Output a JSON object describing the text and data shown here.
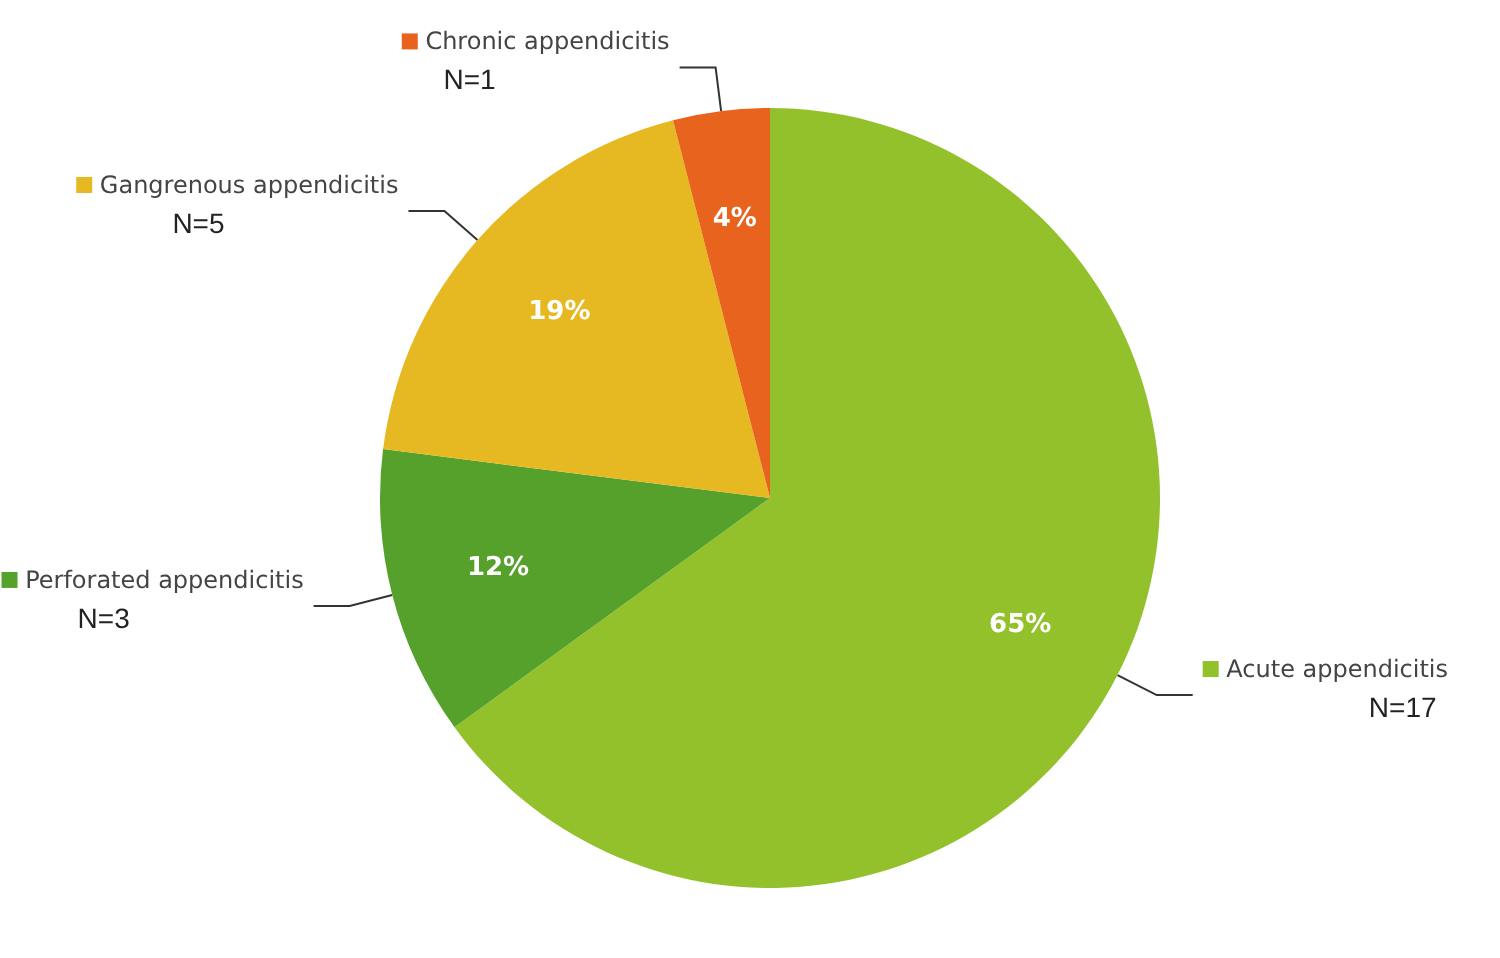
{
  "chart_data": {
    "type": "pie",
    "categories": [
      "Acute appendicitis",
      "Perforated appendicitis",
      "Gangrenous appendicitis",
      "Chronic appendicitis"
    ],
    "values": [
      65,
      12,
      19,
      4
    ],
    "colors": [
      "#93c12b",
      "#55a12b",
      "#e6b922",
      "#e8641e"
    ],
    "value_labels": [
      "65%",
      "12%",
      "19%",
      "4%"
    ],
    "annotations": [
      "N=17",
      "N=3",
      "N=5",
      "N=1"
    ],
    "legend": "top left"
  }
}
